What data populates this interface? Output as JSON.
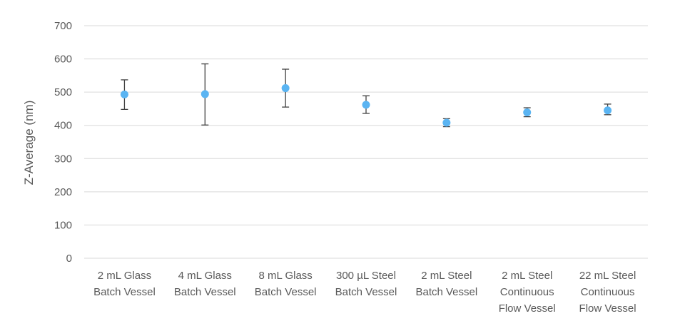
{
  "chart_data": {
    "type": "scatter",
    "title": "",
    "xlabel": "",
    "ylabel": "Z-Average (nm)",
    "ylim": [
      0,
      700
    ],
    "yticks": [
      0,
      100,
      200,
      300,
      400,
      500,
      600,
      700
    ],
    "grid": true,
    "legend": "none",
    "categories": [
      [
        "2 mL Glass",
        "Batch Vessel"
      ],
      [
        "4 mL Glass",
        "Batch Vessel"
      ],
      [
        "8 mL Glass",
        "Batch Vessel"
      ],
      [
        "300 µL Steel",
        "Batch Vessel"
      ],
      [
        "2 mL Steel",
        "Batch Vessel"
      ],
      [
        "2 mL Steel",
        "Continuous",
        "Flow Vessel"
      ],
      [
        "22 mL Steel",
        "Continuous",
        "Flow Vessel"
      ]
    ],
    "series": [
      {
        "values": [
          493,
          494,
          512,
          462,
          408,
          439,
          445
        ],
        "error_low": [
          448,
          401,
          455,
          436,
          396,
          426,
          432
        ],
        "error_high": [
          537,
          585,
          569,
          489,
          420,
          453,
          464
        ]
      }
    ],
    "colors": {
      "marker": "#5AB4F2",
      "error_bar": "#404040",
      "gridline": "#D9D9D9",
      "text": "#595959"
    }
  }
}
